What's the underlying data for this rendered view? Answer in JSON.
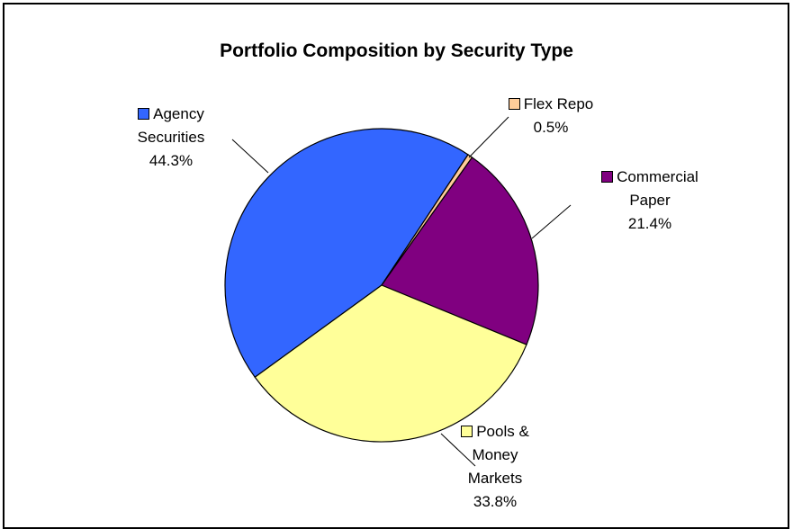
{
  "chart_data": {
    "type": "pie",
    "title": "Portfolio Composition by Security Type",
    "categories": [
      "Agency Securities",
      "Flex Repo",
      "Commercial Paper",
      "Pools & Money Markets"
    ],
    "values": [
      44.3,
      0.5,
      21.4,
      33.8
    ],
    "value_labels": [
      "44.3%",
      "0.5%",
      "21.4%",
      "33.8%"
    ],
    "colors": [
      "#3366ff",
      "#ffcc99",
      "#800080",
      "#ffff99"
    ]
  }
}
